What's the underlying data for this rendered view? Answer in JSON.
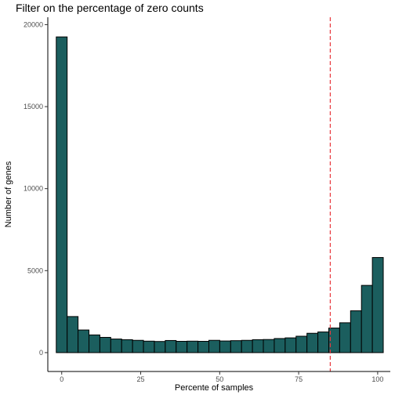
{
  "chart_data": {
    "type": "bar",
    "title": "Filter on the percentage of zero counts",
    "xlabel": "Percente of samples",
    "ylabel": "Number of genes",
    "xlim": [
      -4.4,
      104.0
    ],
    "ylim": [
      -1150,
      20450
    ],
    "xticks": [
      0,
      25,
      50,
      75,
      100
    ],
    "yticks": [
      0,
      5000,
      10000,
      15000,
      20000
    ],
    "bin_width": 3.45,
    "bin_centers": [
      0,
      3.45,
      6.9,
      10.35,
      13.8,
      17.25,
      20.7,
      24.15,
      27.6,
      31.05,
      34.5,
      37.95,
      41.4,
      44.85,
      48.3,
      51.75,
      55.2,
      58.65,
      62.1,
      65.55,
      69.0,
      72.45,
      75.9,
      79.35,
      82.8,
      86.25,
      89.7,
      93.15,
      96.6,
      100.05
    ],
    "values": [
      19250,
      2200,
      1380,
      1080,
      930,
      830,
      790,
      750,
      700,
      680,
      740,
      690,
      700,
      690,
      750,
      710,
      730,
      750,
      790,
      800,
      860,
      900,
      1000,
      1180,
      1260,
      1500,
      1820,
      2550,
      4100,
      5800
    ],
    "threshold_x": 85,
    "grid": false,
    "legend": "none",
    "colors": {
      "bar_fill": "#1b5e5e",
      "bar_outline": "#000000",
      "threshold_line": "#e8383d"
    }
  }
}
